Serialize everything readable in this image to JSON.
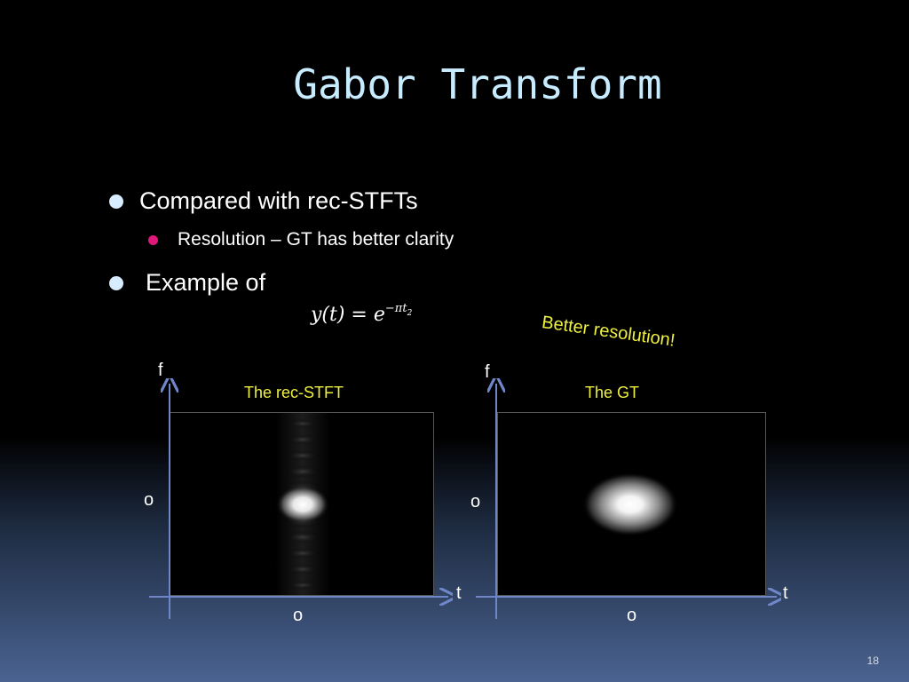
{
  "slide": {
    "title": "Gabor Transform",
    "page_number": "18"
  },
  "bullets": [
    {
      "text": "Compared with rec-STFTs"
    },
    {
      "text": "Resolution – GT has better clarity"
    },
    {
      "text": "Example of"
    }
  ],
  "formula": {
    "lhs": "y(t)",
    "eq": " = ",
    "base": "e",
    "exp": "−πt",
    "exp_power": "2"
  },
  "callout": "Better resolution!",
  "plots": [
    {
      "title": "The rec-STFT",
      "y_axis": "f",
      "x_axis": "t",
      "y_origin": "o",
      "x_origin": "o"
    },
    {
      "title": "The GT",
      "y_axis": "f",
      "x_axis": "t",
      "y_origin": "o",
      "x_origin": "o"
    }
  ],
  "colors": {
    "title": "#c8ecff",
    "accent_yellow": "#eef040",
    "bullet_l1": "#d8ecff",
    "bullet_l2": "#e0187a",
    "axis": "#6f86c8"
  }
}
